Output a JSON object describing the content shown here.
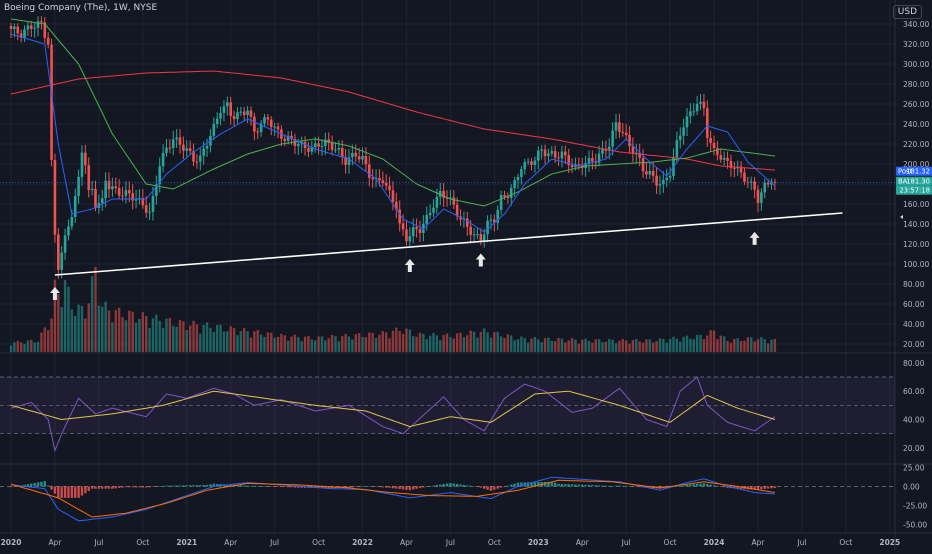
{
  "header": {
    "title": "Boeing Company (The), 1W, NYSE"
  },
  "currency": "USD",
  "colors": {
    "background": "#131722",
    "up": "#26a69a",
    "down": "#ef5350",
    "ma_fast": "#2962ff",
    "ma_mid": "#4caf50",
    "ma_slow": "#f23645",
    "rsi": "#7e57c2",
    "rsi_ma": "#e2c84b",
    "macd": "#2962ff",
    "signal": "#ff6d00",
    "trendline": "#ffffff",
    "grid": "#1f2330",
    "axis_text": "#b2b5be"
  },
  "price_labels": [
    {
      "tag": "Post",
      "value": "181.32",
      "color": "#2962ff"
    },
    {
      "tag": "BA",
      "value": "181.30",
      "color": "#26a69a"
    },
    {
      "tag": "",
      "value": "23:57:18",
      "color": "#26a69a"
    }
  ],
  "chart_data": {
    "type": "candlestick",
    "title": "Boeing Company (The), 1W, NYSE",
    "price_axis": {
      "ticks": [
        340,
        320,
        300,
        280,
        260,
        240,
        220,
        200,
        180,
        160,
        140,
        120,
        100,
        80,
        60,
        40,
        20
      ],
      "ylim": [
        12,
        352
      ],
      "last": 181.3
    },
    "rsi_axis": {
      "ticks": [
        80,
        60,
        40,
        20
      ],
      "band": [
        30,
        70
      ],
      "mid": 50,
      "ylim": [
        10,
        82
      ]
    },
    "macd_axis": {
      "ticks": [
        25,
        0,
        -25,
        -50
      ],
      "ylim": [
        -57,
        28
      ]
    },
    "x_labels": [
      "2020",
      "Apr",
      "Jul",
      "Oct",
      "2021",
      "Apr",
      "Jul",
      "Oct",
      "2022",
      "Apr",
      "Jul",
      "Oct",
      "2023",
      "Apr",
      "Jul",
      "Oct",
      "2024",
      "Apr",
      "Jul",
      "Oct",
      "2025"
    ],
    "x_label_weeks": [
      0,
      13,
      26,
      39,
      52,
      65,
      78,
      91,
      104,
      117,
      130,
      143,
      156,
      169,
      182,
      195,
      208,
      221,
      234,
      247,
      260
    ],
    "last_week": 226,
    "price_keyframes": [
      [
        0,
        335
      ],
      [
        3,
        330
      ],
      [
        6,
        338
      ],
      [
        9,
        340
      ],
      [
        11,
        320
      ],
      [
        12,
        200
      ],
      [
        13,
        130
      ],
      [
        14,
        98
      ],
      [
        15,
        110
      ],
      [
        16,
        125
      ],
      [
        17,
        140
      ],
      [
        18,
        150
      ],
      [
        19,
        165
      ],
      [
        20,
        185
      ],
      [
        21,
        215
      ],
      [
        22,
        200
      ],
      [
        23,
        170
      ],
      [
        24,
        175
      ],
      [
        25,
        160
      ],
      [
        26,
        160
      ],
      [
        27,
        162
      ],
      [
        28,
        185
      ],
      [
        29,
        178
      ],
      [
        30,
        175
      ],
      [
        33,
        170
      ],
      [
        35,
        170
      ],
      [
        37,
        165
      ],
      [
        38,
        162
      ],
      [
        39,
        160
      ],
      [
        41,
        150
      ],
      [
        42,
        165
      ],
      [
        44,
        200
      ],
      [
        46,
        215
      ],
      [
        48,
        225
      ],
      [
        50,
        220
      ],
      [
        52,
        214
      ],
      [
        54,
        205
      ],
      [
        56,
        205
      ],
      [
        58,
        222
      ],
      [
        60,
        236
      ],
      [
        62,
        255
      ],
      [
        64,
        258
      ],
      [
        65,
        250
      ],
      [
        66,
        248
      ],
      [
        68,
        250
      ],
      [
        70,
        255
      ],
      [
        72,
        232
      ],
      [
        74,
        240
      ],
      [
        76,
        246
      ],
      [
        78,
        235
      ],
      [
        81,
        225
      ],
      [
        83,
        224
      ],
      [
        86,
        218
      ],
      [
        89,
        215
      ],
      [
        91,
        220
      ],
      [
        93,
        221
      ],
      [
        95,
        218
      ],
      [
        97,
        212
      ],
      [
        99,
        203
      ],
      [
        102,
        210
      ],
      [
        104,
        205
      ],
      [
        106,
        190
      ],
      [
        108,
        182
      ],
      [
        110,
        185
      ],
      [
        112,
        170
      ],
      [
        114,
        158
      ],
      [
        115,
        138
      ],
      [
        117,
        126
      ],
      [
        119,
        133
      ],
      [
        121,
        135
      ],
      [
        123,
        145
      ],
      [
        125,
        160
      ],
      [
        127,
        170
      ],
      [
        129,
        168
      ],
      [
        131,
        158
      ],
      [
        133,
        145
      ],
      [
        135,
        138
      ],
      [
        137,
        128
      ],
      [
        139,
        125
      ],
      [
        141,
        140
      ],
      [
        143,
        145
      ],
      [
        145,
        165
      ],
      [
        147,
        170
      ],
      [
        149,
        180
      ],
      [
        151,
        198
      ],
      [
        153,
        200
      ],
      [
        155,
        205
      ],
      [
        157,
        214
      ],
      [
        159,
        210
      ],
      [
        161,
        208
      ],
      [
        163,
        210
      ],
      [
        165,
        202
      ],
      [
        167,
        196
      ],
      [
        169,
        200
      ],
      [
        171,
        202
      ],
      [
        173,
        205
      ],
      [
        175,
        212
      ],
      [
        177,
        220
      ],
      [
        179,
        240
      ],
      [
        181,
        232
      ],
      [
        183,
        218
      ],
      [
        185,
        210
      ],
      [
        187,
        195
      ],
      [
        189,
        190
      ],
      [
        191,
        182
      ],
      [
        193,
        180
      ],
      [
        195,
        192
      ],
      [
        197,
        220
      ],
      [
        199,
        240
      ],
      [
        201,
        250
      ],
      [
        203,
        262
      ],
      [
        205,
        255
      ],
      [
        206,
        230
      ],
      [
        208,
        212
      ],
      [
        210,
        208
      ],
      [
        212,
        200
      ],
      [
        214,
        198
      ],
      [
        216,
        190
      ],
      [
        218,
        182
      ],
      [
        220,
        175
      ],
      [
        221,
        165
      ],
      [
        222,
        170
      ],
      [
        223,
        178
      ],
      [
        224,
        182
      ],
      [
        225,
        185
      ],
      [
        226,
        181.3
      ]
    ],
    "ma_fast_keyframes": [
      [
        0,
        330
      ],
      [
        10,
        320
      ],
      [
        14,
        220
      ],
      [
        18,
        150
      ],
      [
        24,
        155
      ],
      [
        30,
        165
      ],
      [
        40,
        165
      ],
      [
        46,
        190
      ],
      [
        54,
        212
      ],
      [
        62,
        230
      ],
      [
        70,
        245
      ],
      [
        80,
        230
      ],
      [
        90,
        215
      ],
      [
        100,
        205
      ],
      [
        108,
        185
      ],
      [
        116,
        145
      ],
      [
        122,
        135
      ],
      [
        128,
        155
      ],
      [
        134,
        145
      ],
      [
        140,
        132
      ],
      [
        146,
        150
      ],
      [
        152,
        180
      ],
      [
        160,
        205
      ],
      [
        168,
        198
      ],
      [
        176,
        205
      ],
      [
        182,
        225
      ],
      [
        188,
        205
      ],
      [
        194,
        188
      ],
      [
        200,
        215
      ],
      [
        206,
        238
      ],
      [
        212,
        232
      ],
      [
        218,
        202
      ],
      [
        226,
        178
      ]
    ],
    "ma_mid_keyframes": [
      [
        0,
        345
      ],
      [
        10,
        340
      ],
      [
        20,
        300
      ],
      [
        30,
        230
      ],
      [
        40,
        180
      ],
      [
        48,
        175
      ],
      [
        60,
        195
      ],
      [
        70,
        210
      ],
      [
        80,
        220
      ],
      [
        90,
        225
      ],
      [
        100,
        218
      ],
      [
        110,
        205
      ],
      [
        120,
        180
      ],
      [
        130,
        165
      ],
      [
        140,
        158
      ],
      [
        150,
        172
      ],
      [
        160,
        190
      ],
      [
        170,
        198
      ],
      [
        180,
        200
      ],
      [
        190,
        202
      ],
      [
        200,
        206
      ],
      [
        210,
        215
      ],
      [
        226,
        208
      ]
    ],
    "ma_slow_keyframes": [
      [
        0,
        270
      ],
      [
        20,
        285
      ],
      [
        40,
        291
      ],
      [
        60,
        293
      ],
      [
        80,
        286
      ],
      [
        100,
        272
      ],
      [
        120,
        252
      ],
      [
        140,
        235
      ],
      [
        160,
        225
      ],
      [
        180,
        212
      ],
      [
        200,
        205
      ],
      [
        210,
        198
      ],
      [
        226,
        194
      ]
    ],
    "trendline": [
      [
        13,
        89
      ],
      [
        246,
        151
      ]
    ],
    "arrows_weeks": [
      [
        13,
        "below"
      ],
      [
        118,
        "below"
      ],
      [
        139,
        "below"
      ],
      [
        220,
        "below"
      ]
    ],
    "rsi_keyframes": [
      [
        0,
        48
      ],
      [
        6,
        52
      ],
      [
        11,
        40
      ],
      [
        13,
        18
      ],
      [
        15,
        30
      ],
      [
        20,
        55
      ],
      [
        25,
        44
      ],
      [
        30,
        48
      ],
      [
        40,
        42
      ],
      [
        46,
        58
      ],
      [
        52,
        55
      ],
      [
        60,
        62
      ],
      [
        66,
        58
      ],
      [
        72,
        50
      ],
      [
        80,
        54
      ],
      [
        90,
        46
      ],
      [
        100,
        50
      ],
      [
        110,
        35
      ],
      [
        116,
        30
      ],
      [
        122,
        43
      ],
      [
        128,
        56
      ],
      [
        134,
        40
      ],
      [
        140,
        32
      ],
      [
        146,
        55
      ],
      [
        152,
        65
      ],
      [
        158,
        60
      ],
      [
        166,
        45
      ],
      [
        172,
        48
      ],
      [
        180,
        62
      ],
      [
        188,
        40
      ],
      [
        194,
        35
      ],
      [
        198,
        60
      ],
      [
        203,
        70
      ],
      [
        206,
        50
      ],
      [
        212,
        38
      ],
      [
        220,
        32
      ],
      [
        226,
        42
      ]
    ],
    "rsi_ma_keyframes": [
      [
        0,
        50
      ],
      [
        15,
        40
      ],
      [
        30,
        44
      ],
      [
        45,
        50
      ],
      [
        60,
        60
      ],
      [
        75,
        55
      ],
      [
        90,
        50
      ],
      [
        105,
        46
      ],
      [
        118,
        35
      ],
      [
        130,
        42
      ],
      [
        142,
        38
      ],
      [
        155,
        58
      ],
      [
        165,
        60
      ],
      [
        180,
        50
      ],
      [
        195,
        38
      ],
      [
        206,
        57
      ],
      [
        215,
        48
      ],
      [
        226,
        40
      ]
    ],
    "macd_keyframes": [
      [
        0,
        2
      ],
      [
        10,
        -3
      ],
      [
        14,
        -30
      ],
      [
        20,
        -45
      ],
      [
        30,
        -40
      ],
      [
        40,
        -30
      ],
      [
        50,
        -15
      ],
      [
        60,
        0
      ],
      [
        70,
        5
      ],
      [
        80,
        2
      ],
      [
        95,
        -3
      ],
      [
        105,
        -4
      ],
      [
        118,
        -15
      ],
      [
        130,
        -8
      ],
      [
        142,
        -16
      ],
      [
        150,
        0
      ],
      [
        160,
        12
      ],
      [
        180,
        6
      ],
      [
        192,
        -5
      ],
      [
        200,
        5
      ],
      [
        205,
        10
      ],
      [
        212,
        0
      ],
      [
        220,
        -8
      ],
      [
        226,
        -10
      ]
    ],
    "signal_keyframes": [
      [
        0,
        3
      ],
      [
        14,
        -15
      ],
      [
        24,
        -40
      ],
      [
        34,
        -35
      ],
      [
        46,
        -22
      ],
      [
        58,
        -5
      ],
      [
        70,
        4
      ],
      [
        85,
        2
      ],
      [
        100,
        -2
      ],
      [
        112,
        -8
      ],
      [
        124,
        -12
      ],
      [
        138,
        -13
      ],
      [
        150,
        -5
      ],
      [
        162,
        8
      ],
      [
        178,
        6
      ],
      [
        192,
        -2
      ],
      [
        205,
        6
      ],
      [
        215,
        0
      ],
      [
        226,
        -8
      ]
    ],
    "volume_keyframes": [
      [
        0,
        8
      ],
      [
        8,
        10
      ],
      [
        12,
        30
      ],
      [
        13,
        55
      ],
      [
        14,
        50
      ],
      [
        16,
        60
      ],
      [
        18,
        40
      ],
      [
        22,
        35
      ],
      [
        25,
        70
      ],
      [
        27,
        40
      ],
      [
        30,
        35
      ],
      [
        40,
        30
      ],
      [
        50,
        25
      ],
      [
        60,
        22
      ],
      [
        70,
        18
      ],
      [
        80,
        14
      ],
      [
        90,
        12
      ],
      [
        100,
        14
      ],
      [
        110,
        16
      ],
      [
        116,
        20
      ],
      [
        120,
        15
      ],
      [
        130,
        14
      ],
      [
        140,
        18
      ],
      [
        150,
        12
      ],
      [
        160,
        11
      ],
      [
        175,
        10
      ],
      [
        190,
        10
      ],
      [
        205,
        14
      ],
      [
        208,
        18
      ],
      [
        212,
        10
      ],
      [
        220,
        12
      ],
      [
        226,
        10
      ]
    ]
  }
}
